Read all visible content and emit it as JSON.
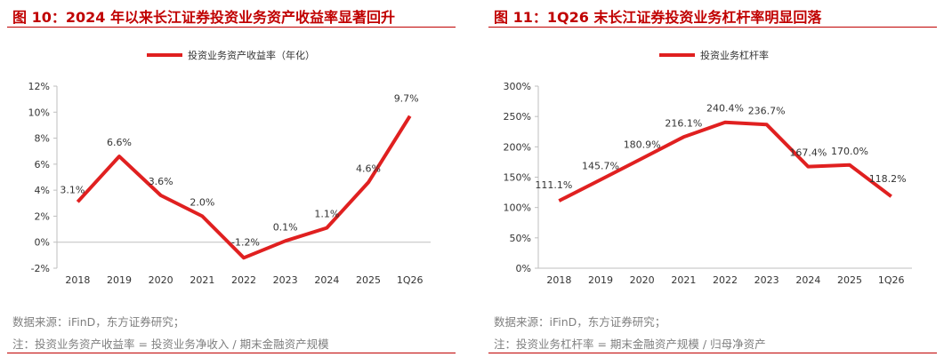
{
  "colors": {
    "accent": "#c00000",
    "line": "#e02020",
    "axis": "#bfbfbf",
    "note": "#7f7f7f"
  },
  "left": {
    "title": "图 10：2024 年以来长江证券投资业务资产收益率显著回升",
    "source": "数据来源：iFinD，东方证券研究；",
    "note": "注：投资业务资产收益率 = 投资业务净收入 / 期末金融资产规模"
  },
  "right": {
    "title": "图 11：1Q26 末长江证券投资业务杠杆率明显回落",
    "source": "数据来源：iFinD，东方证券研究；",
    "note": "注：投资业务杠杆率 = 期末金融资产规模 / 归母净资产"
  },
  "chart_data": [
    {
      "type": "line",
      "categories": [
        "2018",
        "2019",
        "2020",
        "2021",
        "2022",
        "2023",
        "2024",
        "2025",
        "1Q26"
      ],
      "series": [
        {
          "name": "投资业务资产收益率（年化）",
          "values": [
            3.1,
            6.6,
            3.6,
            2.0,
            -1.2,
            0.1,
            1.1,
            4.6,
            9.7
          ]
        }
      ],
      "data_labels": [
        "3.1%",
        "6.6%",
        "3.6%",
        "2.0%",
        "-1.2%",
        "0.1%",
        "1.1%",
        "4.6%",
        "9.7%"
      ],
      "ylim": [
        -2,
        12
      ],
      "yticks": [
        -2,
        0,
        2,
        4,
        6,
        8,
        10,
        12
      ],
      "ytick_labels": [
        "-2%",
        "0%",
        "2%",
        "4%",
        "6%",
        "8%",
        "10%",
        "12%"
      ],
      "legend_position": "top-center",
      "grid": false
    },
    {
      "type": "line",
      "categories": [
        "2018",
        "2019",
        "2020",
        "2021",
        "2022",
        "2023",
        "2024",
        "2025",
        "1Q26"
      ],
      "series": [
        {
          "name": "投资业务杠杆率",
          "values": [
            111.1,
            145.7,
            180.9,
            216.1,
            240.4,
            236.7,
            167.4,
            170.0,
            118.2
          ]
        }
      ],
      "data_labels": [
        "111.1%",
        "145.7%",
        "180.9%",
        "216.1%",
        "240.4%",
        "236.7%",
        "167.4%",
        "170.0%",
        "118.2%"
      ],
      "ylim": [
        0,
        300
      ],
      "yticks": [
        0,
        50,
        100,
        150,
        200,
        250,
        300
      ],
      "ytick_labels": [
        "0%",
        "50%",
        "100%",
        "150%",
        "200%",
        "250%",
        "300%"
      ],
      "legend_position": "top-center",
      "grid": false
    }
  ]
}
